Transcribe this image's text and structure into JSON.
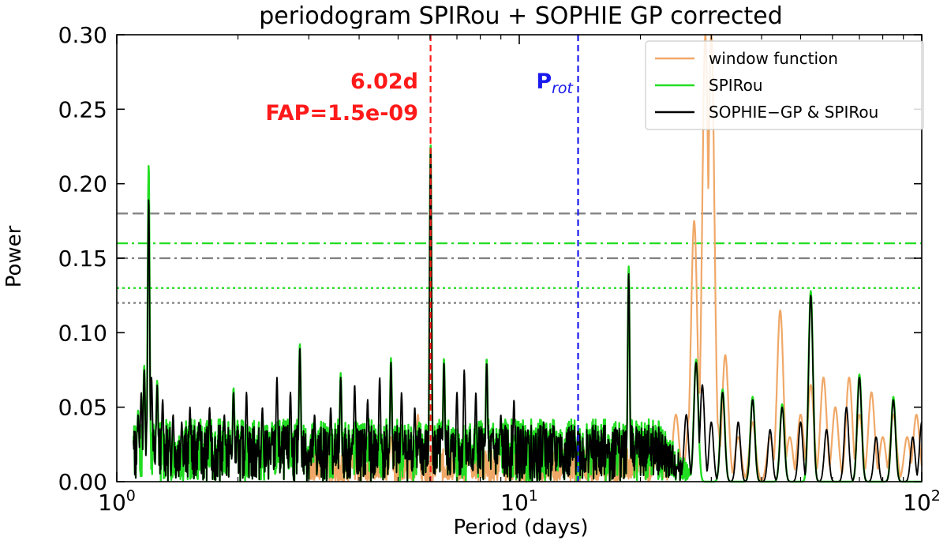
{
  "chart_data": {
    "type": "line",
    "title": "periodogram SPIRou + SOPHIE GP corrected",
    "xlabel": "Period (days)",
    "ylabel": "Power",
    "xscale": "log",
    "xlim": [
      1,
      100
    ],
    "ylim": [
      0,
      0.3
    ],
    "x_ticks": [
      {
        "value": 1,
        "base": "10",
        "exp": "0"
      },
      {
        "value": 10,
        "base": "10",
        "exp": "1"
      },
      {
        "value": 100,
        "base": "10",
        "exp": "2"
      }
    ],
    "y_ticks": [
      {
        "value": 0.0,
        "label": "0.00"
      },
      {
        "value": 0.05,
        "label": "0.05"
      },
      {
        "value": 0.1,
        "label": "0.10"
      },
      {
        "value": 0.15,
        "label": "0.15"
      },
      {
        "value": 0.2,
        "label": "0.20"
      },
      {
        "value": 0.25,
        "label": "0.25"
      },
      {
        "value": 0.3,
        "label": "0.30"
      }
    ],
    "legend": [
      {
        "label": "window function",
        "color": "#f0a868"
      },
      {
        "label": "SPIRou",
        "color": "#22dd22"
      },
      {
        "label": "SOPHIE−GP & SPIRou",
        "color": "#000000"
      }
    ],
    "fap_lines": [
      {
        "y": 0.18,
        "color": "#808080",
        "style": "dashed"
      },
      {
        "y": 0.16,
        "color": "#22dd22",
        "style": "dashdot"
      },
      {
        "y": 0.15,
        "color": "#808080",
        "style": "dashdot"
      },
      {
        "y": 0.13,
        "color": "#22dd22",
        "style": "dotted"
      },
      {
        "y": 0.12,
        "color": "#808080",
        "style": "dotted"
      }
    ],
    "vlines": [
      {
        "x": 6.02,
        "color": "#ff1a1a"
      },
      {
        "x": 14.0,
        "color": "#1a1aee"
      }
    ],
    "annotations": {
      "peak_period": "6.02d",
      "fap_text": "FAP=1.5e-09",
      "prot_main": "P",
      "prot_sub": "rot"
    },
    "series": [
      {
        "name": "SOPHIE−GP & SPIRou",
        "color": "#000000",
        "peaks": [
          [
            1.13,
            0.045
          ],
          [
            1.15,
            0.06
          ],
          [
            1.17,
            0.075
          ],
          [
            1.2,
            0.19
          ],
          [
            1.22,
            0.07
          ],
          [
            1.26,
            0.065
          ],
          [
            1.3,
            0.055
          ],
          [
            1.38,
            0.045
          ],
          [
            1.45,
            0.04
          ],
          [
            1.52,
            0.05
          ],
          [
            1.6,
            0.04
          ],
          [
            1.7,
            0.05
          ],
          [
            1.85,
            0.045
          ],
          [
            1.95,
            0.06
          ],
          [
            2.1,
            0.06
          ],
          [
            2.3,
            0.05
          ],
          [
            2.5,
            0.07
          ],
          [
            2.7,
            0.06
          ],
          [
            2.85,
            0.09
          ],
          [
            3.1,
            0.045
          ],
          [
            3.4,
            0.05
          ],
          [
            3.6,
            0.07
          ],
          [
            3.9,
            0.065
          ],
          [
            4.2,
            0.055
          ],
          [
            4.5,
            0.07
          ],
          [
            4.8,
            0.08
          ],
          [
            5.1,
            0.06
          ],
          [
            5.5,
            0.05
          ],
          [
            6.02,
            0.225
          ],
          [
            6.5,
            0.08
          ],
          [
            7.0,
            0.06
          ],
          [
            7.3,
            0.075
          ],
          [
            7.8,
            0.06
          ],
          [
            8.3,
            0.08
          ],
          [
            9.0,
            0.045
          ],
          [
            9.7,
            0.055
          ],
          [
            10.5,
            0.035
          ],
          [
            11.5,
            0.04
          ],
          [
            12.5,
            0.03
          ],
          [
            13.5,
            0.02
          ],
          [
            14.0,
            0.035
          ],
          [
            15,
            0.03
          ],
          [
            16.5,
            0.025
          ],
          [
            17.5,
            0.035
          ],
          [
            18.7,
            0.14
          ],
          [
            19.5,
            0.03
          ],
          [
            21,
            0.02
          ],
          [
            22.5,
            0.01
          ],
          [
            24,
            0.006
          ],
          [
            26,
            0.045
          ],
          [
            27.5,
            0.08
          ],
          [
            28.5,
            0.065
          ],
          [
            30,
            0.04
          ],
          [
            32,
            0.06
          ],
          [
            35,
            0.04
          ],
          [
            38,
            0.055
          ],
          [
            42,
            0.035
          ],
          [
            45,
            0.05
          ],
          [
            50,
            0.04
          ],
          [
            53,
            0.125
          ],
          [
            58,
            0.035
          ],
          [
            65,
            0.05
          ],
          [
            70,
            0.07
          ],
          [
            77,
            0.03
          ],
          [
            85,
            0.055
          ],
          [
            95,
            0.03
          ],
          [
            100,
            0.04
          ]
        ]
      },
      {
        "name": "SPIRou",
        "color": "#22dd22",
        "peaks": [
          [
            1.13,
            0.048
          ],
          [
            1.17,
            0.078
          ],
          [
            1.2,
            0.213
          ],
          [
            1.26,
            0.068
          ],
          [
            1.95,
            0.063
          ],
          [
            2.85,
            0.093
          ],
          [
            3.6,
            0.073
          ],
          [
            4.8,
            0.083
          ],
          [
            6.02,
            0.228
          ],
          [
            6.5,
            0.083
          ],
          [
            8.3,
            0.083
          ],
          [
            18.7,
            0.145
          ],
          [
            27.5,
            0.082
          ],
          [
            32,
            0.062
          ],
          [
            38,
            0.057
          ],
          [
            45,
            0.052
          ],
          [
            53,
            0.128
          ],
          [
            70,
            0.072
          ],
          [
            85,
            0.057
          ]
        ]
      },
      {
        "name": "window function",
        "color": "#f0a868",
        "peaks": [
          [
            4.8,
            0.03
          ],
          [
            5.6,
            0.045
          ],
          [
            6.3,
            0.03
          ],
          [
            7.5,
            0.03
          ],
          [
            9.0,
            0.025
          ],
          [
            11,
            0.025
          ],
          [
            13,
            0.02
          ],
          [
            16,
            0.015
          ],
          [
            20,
            0.02
          ],
          [
            22,
            0.015
          ],
          [
            24.5,
            0.045
          ],
          [
            26.5,
            0.045
          ],
          [
            27.2,
            0.175
          ],
          [
            28,
            0.06
          ],
          [
            29,
            0.3
          ],
          [
            30,
            0.3
          ],
          [
            31,
            0.04
          ],
          [
            32.5,
            0.085
          ],
          [
            35,
            0.03
          ],
          [
            38,
            0.04
          ],
          [
            42,
            0.03
          ],
          [
            44.5,
            0.115
          ],
          [
            47,
            0.03
          ],
          [
            50,
            0.045
          ],
          [
            53,
            0.065
          ],
          [
            57,
            0.07
          ],
          [
            61,
            0.05
          ],
          [
            66,
            0.07
          ],
          [
            70,
            0.045
          ],
          [
            75,
            0.06
          ],
          [
            80,
            0.03
          ],
          [
            85,
            0.045
          ],
          [
            92,
            0.03
          ],
          [
            97,
            0.045
          ],
          [
            100,
            0.01
          ]
        ]
      }
    ]
  }
}
